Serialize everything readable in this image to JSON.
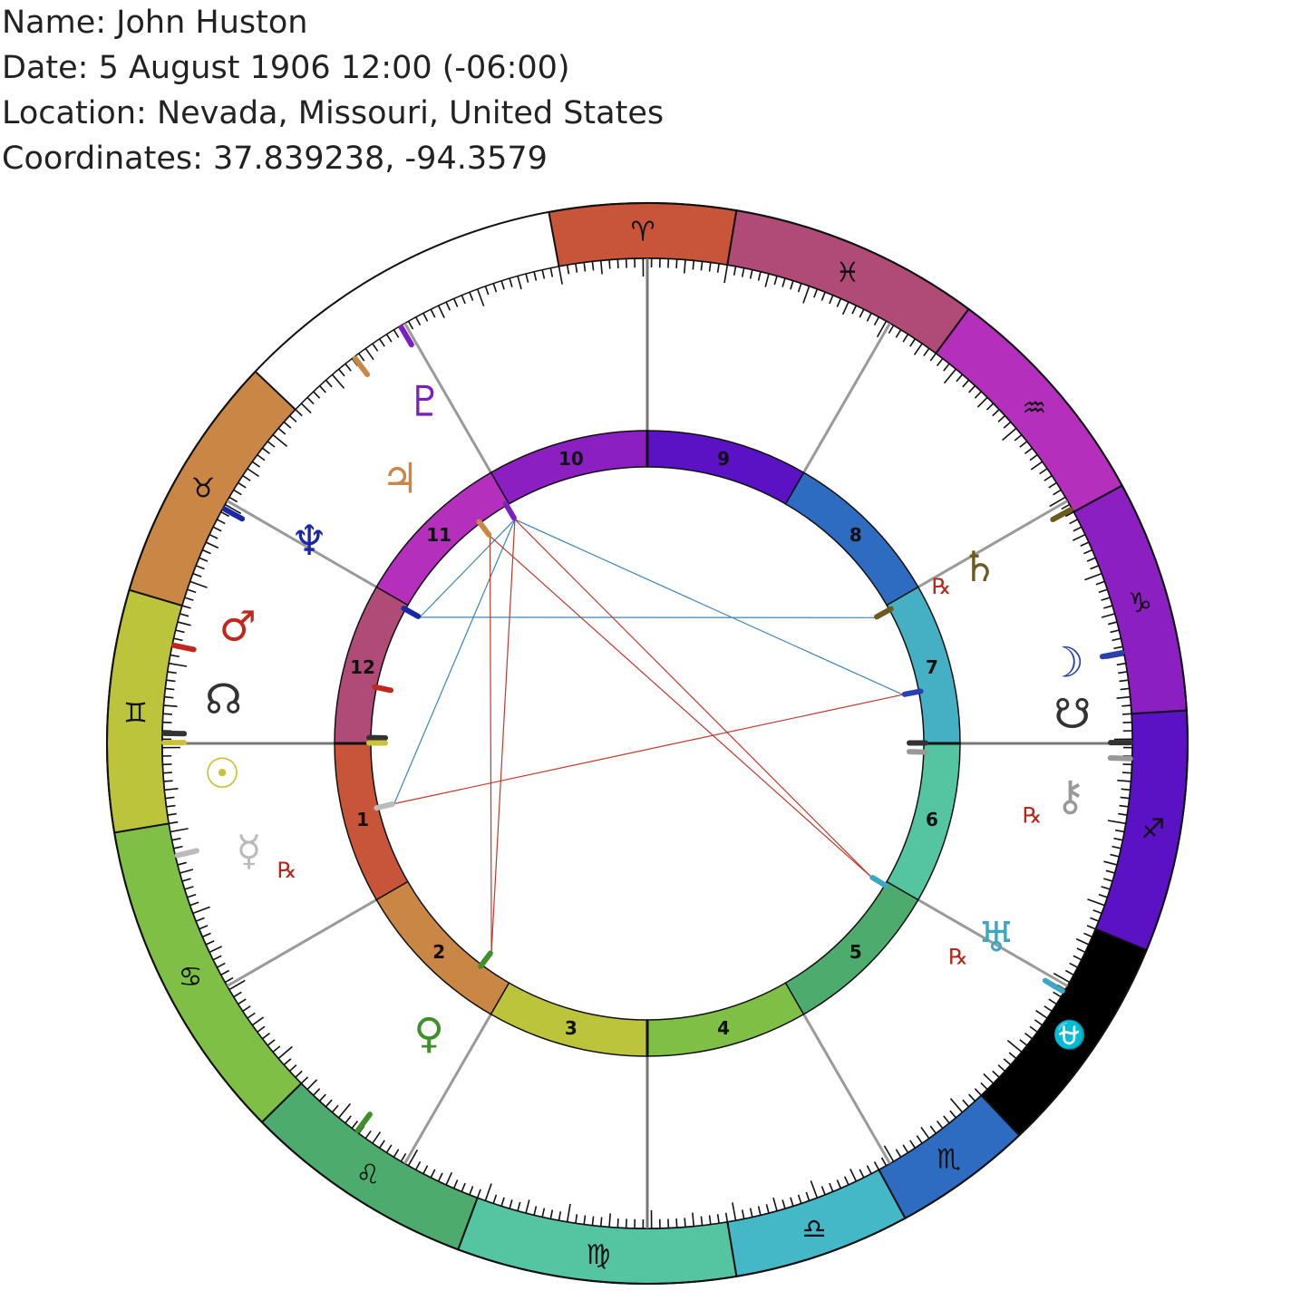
{
  "header": {
    "name_line": "Name: John Huston",
    "date_line": "Date: 5 August 1906 12:00 (-06:00)",
    "location_line": "Location: Nevada, Missouri, United States",
    "coordinates_line": "Coordinates: 37.839238, -94.3579"
  },
  "zodiac": [
    {
      "glyph": "♈",
      "name": "aries-sign",
      "color": "#c8553a"
    },
    {
      "glyph": "♓",
      "name": "pisces-sign",
      "color": "#b04b78"
    },
    {
      "glyph": "♒",
      "name": "aquarius-sign",
      "color": "#b52fbd"
    },
    {
      "glyph": "♑",
      "name": "capricorn-sign",
      "color": "#8b1fc2"
    },
    {
      "glyph": "♐",
      "name": "sagittarius-sign",
      "color": "#5a12c4"
    },
    {
      "glyph": "⛎",
      "name": "ophiuchus-sign",
      "color": "#000000",
      "text_color": "#ffffff"
    },
    {
      "glyph": "♏",
      "name": "scorpio-sign",
      "color": "#2e6cc2"
    },
    {
      "glyph": "♎",
      "name": "libra-sign",
      "color": "#45b8c8"
    },
    {
      "glyph": "♍",
      "name": "virgo-sign",
      "color": "#55c4a0"
    },
    {
      "glyph": "♌",
      "name": "leo-sign",
      "color": "#4eab6e"
    },
    {
      "glyph": "♋",
      "name": "cancer-sign",
      "color": "#7fbf45"
    },
    {
      "glyph": "♊",
      "name": "gemini-sign",
      "color": "#bcc43c"
    },
    {
      "glyph": "♉",
      "name": "taurus-sign",
      "color": "#c98645"
    }
  ],
  "houses": [
    {
      "label": "1",
      "color": "#c8553a"
    },
    {
      "label": "2",
      "color": "#c98645"
    },
    {
      "label": "3",
      "color": "#bcc43c"
    },
    {
      "label": "4",
      "color": "#7fbf45"
    },
    {
      "label": "5",
      "color": "#4eab6e"
    },
    {
      "label": "6",
      "color": "#55c4a0"
    },
    {
      "label": "7",
      "color": "#45b0c4"
    },
    {
      "label": "8",
      "color": "#2e6cc2"
    },
    {
      "label": "9",
      "color": "#5a12c4"
    },
    {
      "label": "10",
      "color": "#8b1fc2"
    },
    {
      "label": "11",
      "color": "#b52fbd"
    },
    {
      "label": "12",
      "color": "#b04b78"
    }
  ],
  "planets": [
    {
      "name": "pluto-glyph",
      "glyph": "♇",
      "color": "#7a1fc2",
      "retrograde": false
    },
    {
      "name": "jupiter-glyph",
      "glyph": "♃",
      "color": "#c98645",
      "retrograde": false
    },
    {
      "name": "neptune-glyph",
      "glyph": "♆",
      "color": "#1a28a8",
      "retrograde": false
    },
    {
      "name": "mars-glyph",
      "glyph": "♂",
      "color": "#c0281e",
      "retrograde": false
    },
    {
      "name": "north-node-glyph",
      "glyph": "☊",
      "color": "#333333",
      "retrograde": false
    },
    {
      "name": "sun-glyph",
      "glyph": "☉",
      "color": "#c9c23a",
      "retrograde": false
    },
    {
      "name": "mercury-glyph",
      "glyph": "☿",
      "color": "#bbbbbb",
      "retrograde": true
    },
    {
      "name": "venus-glyph",
      "glyph": "♀",
      "color": "#3f8f2a",
      "retrograde": false
    },
    {
      "name": "saturn-glyph",
      "glyph": "♄",
      "color": "#6e5a1e",
      "retrograde": true
    },
    {
      "name": "moon-glyph",
      "glyph": "☽",
      "color": "#2a3fb0",
      "retrograde": false
    },
    {
      "name": "south-node-glyph",
      "glyph": "☋",
      "color": "#333333",
      "retrograde": false
    },
    {
      "name": "chiron-glyph",
      "glyph": "⚷",
      "color": "#999999",
      "retrograde": true
    },
    {
      "name": "uranus-glyph",
      "glyph": "♅",
      "color": "#3aa7c4",
      "retrograde": true
    }
  ],
  "retrograde_label": "℞",
  "colors": {
    "aspect_harmonious": "#3a86b8",
    "aspect_tense": "#c0392b",
    "house_cusp_line": "#9a9a9a",
    "angle_line": "#777777"
  }
}
